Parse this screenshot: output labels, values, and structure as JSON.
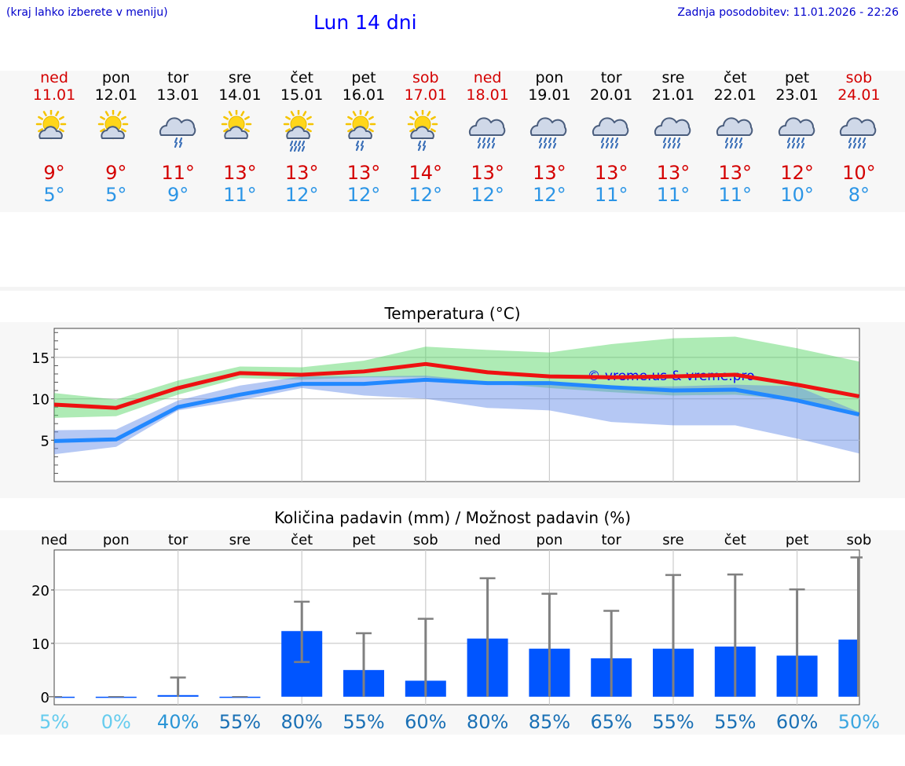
{
  "header": {
    "hint": "(kraj lahko izberete v meniju)",
    "title": "Lun 14 dni",
    "updated": "Zadnja posodobitev: 11.01.2026 - 22:26"
  },
  "colors": {
    "max": "#ee1111",
    "min": "#2288ff",
    "bar": "#0055ff",
    "error": "#808080"
  },
  "days": [
    {
      "name": "ned",
      "date": "11.01",
      "weekend": true,
      "icon": "sun-cloud-icon",
      "max": "9°",
      "min": "5°"
    },
    {
      "name": "pon",
      "date": "12.01",
      "weekend": false,
      "icon": "sun-cloud-icon",
      "max": "9°",
      "min": "5°"
    },
    {
      "name": "tor",
      "date": "13.01",
      "weekend": false,
      "icon": "cloud-rain-icon",
      "max": "11°",
      "min": "9°"
    },
    {
      "name": "sre",
      "date": "14.01",
      "weekend": false,
      "icon": "sun-cloud-icon",
      "max": "13°",
      "min": "11°"
    },
    {
      "name": "čet",
      "date": "15.01",
      "weekend": false,
      "icon": "sun-cloud-rain-heavy-icon",
      "max": "13°",
      "min": "12°"
    },
    {
      "name": "pet",
      "date": "16.01",
      "weekend": false,
      "icon": "sun-cloud-rain-icon",
      "max": "13°",
      "min": "12°"
    },
    {
      "name": "sob",
      "date": "17.01",
      "weekend": true,
      "icon": "sun-cloud-rain-icon",
      "max": "14°",
      "min": "12°"
    },
    {
      "name": "ned",
      "date": "18.01",
      "weekend": true,
      "icon": "cloud-rain-heavy-icon",
      "max": "13°",
      "min": "12°"
    },
    {
      "name": "pon",
      "date": "19.01",
      "weekend": false,
      "icon": "cloud-rain-heavy-icon",
      "max": "13°",
      "min": "12°"
    },
    {
      "name": "tor",
      "date": "20.01",
      "weekend": false,
      "icon": "cloud-rain-heavy-icon",
      "max": "13°",
      "min": "11°"
    },
    {
      "name": "sre",
      "date": "21.01",
      "weekend": false,
      "icon": "cloud-rain-heavy-icon",
      "max": "13°",
      "min": "11°"
    },
    {
      "name": "čet",
      "date": "22.01",
      "weekend": false,
      "icon": "cloud-rain-heavy-icon",
      "max": "13°",
      "min": "11°"
    },
    {
      "name": "pet",
      "date": "23.01",
      "weekend": false,
      "icon": "cloud-rain-heavy-icon",
      "max": "12°",
      "min": "10°"
    },
    {
      "name": "sob",
      "date": "24.01",
      "weekend": true,
      "icon": "cloud-rain-heavy-icon",
      "max": "10°",
      "min": "8°"
    }
  ],
  "chart_data": [
    {
      "type": "line",
      "title": "Temperatura (°C)",
      "xlabel": "",
      "ylabel": "",
      "ylim": [
        0,
        18.5
      ],
      "yticks": [
        "15",
        "10",
        "5"
      ],
      "ytick_values": [
        15,
        10,
        5
      ],
      "watermark": "© vreme.us & vreme.pro",
      "x": [
        0,
        1,
        2,
        3,
        4,
        5,
        6,
        7,
        8,
        9,
        10,
        11,
        12,
        13
      ],
      "series": [
        {
          "name": "max",
          "values": [
            9.3,
            8.9,
            11.3,
            13.1,
            12.9,
            13.3,
            14.2,
            13.2,
            12.7,
            12.6,
            12.7,
            12.9,
            11.7,
            10.3
          ]
        },
        {
          "name": "min",
          "values": [
            4.9,
            5.1,
            9.0,
            10.5,
            11.8,
            11.8,
            12.3,
            11.9,
            11.9,
            11.4,
            11.0,
            11.1,
            9.8,
            8.1
          ]
        }
      ],
      "bands": [
        {
          "name": "max-range",
          "low": [
            7.7,
            7.9,
            10.5,
            12.5,
            12.3,
            12.6,
            12.6,
            11.9,
            11.3,
            10.8,
            10.4,
            10.5,
            9.9,
            8.3
          ],
          "high": [
            10.7,
            9.9,
            12.2,
            13.9,
            13.8,
            14.6,
            16.3,
            15.9,
            15.6,
            16.6,
            17.3,
            17.5,
            16.1,
            14.5
          ]
        },
        {
          "name": "min-range",
          "low": [
            3.3,
            4.2,
            8.6,
            9.8,
            11.3,
            10.4,
            10.0,
            8.9,
            8.6,
            7.2,
            6.8,
            6.8,
            5.2,
            3.4
          ],
          "high": [
            6.2,
            6.3,
            9.8,
            11.6,
            12.7,
            12.7,
            12.8,
            12.1,
            12.0,
            11.5,
            11.5,
            11.7,
            11.5,
            8.4
          ]
        }
      ]
    },
    {
      "type": "bar",
      "title": "Količina padavin (mm) / Možnost padavin (%)",
      "xlabel": "",
      "ylabel": "",
      "ylim": [
        -1.5,
        27.5
      ],
      "yticks": [
        "20",
        "10",
        "0"
      ],
      "ytick_values": [
        20,
        10,
        0
      ],
      "categories": [
        "ned",
        "pon",
        "tor",
        "sre",
        "čet",
        "pet",
        "sob",
        "ned",
        "pon",
        "tor",
        "sre",
        "čet",
        "pet",
        "sob"
      ],
      "values": [
        0,
        0,
        0.3,
        0,
        12.3,
        5.0,
        3.0,
        10.9,
        9.0,
        7.2,
        9.0,
        9.4,
        7.7,
        10.7
      ],
      "error_low": [
        0,
        0,
        0,
        0,
        6.5,
        0,
        0,
        0,
        0,
        0,
        0,
        0,
        0,
        0
      ],
      "error_high": [
        0,
        0,
        3.6,
        0,
        17.8,
        11.9,
        14.6,
        22.2,
        19.3,
        16.1,
        22.8,
        22.9,
        20.1,
        26.1
      ],
      "probabilities": [
        "5%",
        "0%",
        "40%",
        "55%",
        "80%",
        "55%",
        "60%",
        "80%",
        "85%",
        "65%",
        "55%",
        "55%",
        "60%",
        "50%"
      ],
      "probability_colors": [
        "#66ccee",
        "#66ccee",
        "#2b95d6",
        "#1a70b5",
        "#1a70b5",
        "#1a70b5",
        "#1a70b5",
        "#1a70b5",
        "#1a70b5",
        "#1a70b5",
        "#1a70b5",
        "#1a70b5",
        "#1a70b5",
        "#3ba6e0"
      ]
    }
  ]
}
